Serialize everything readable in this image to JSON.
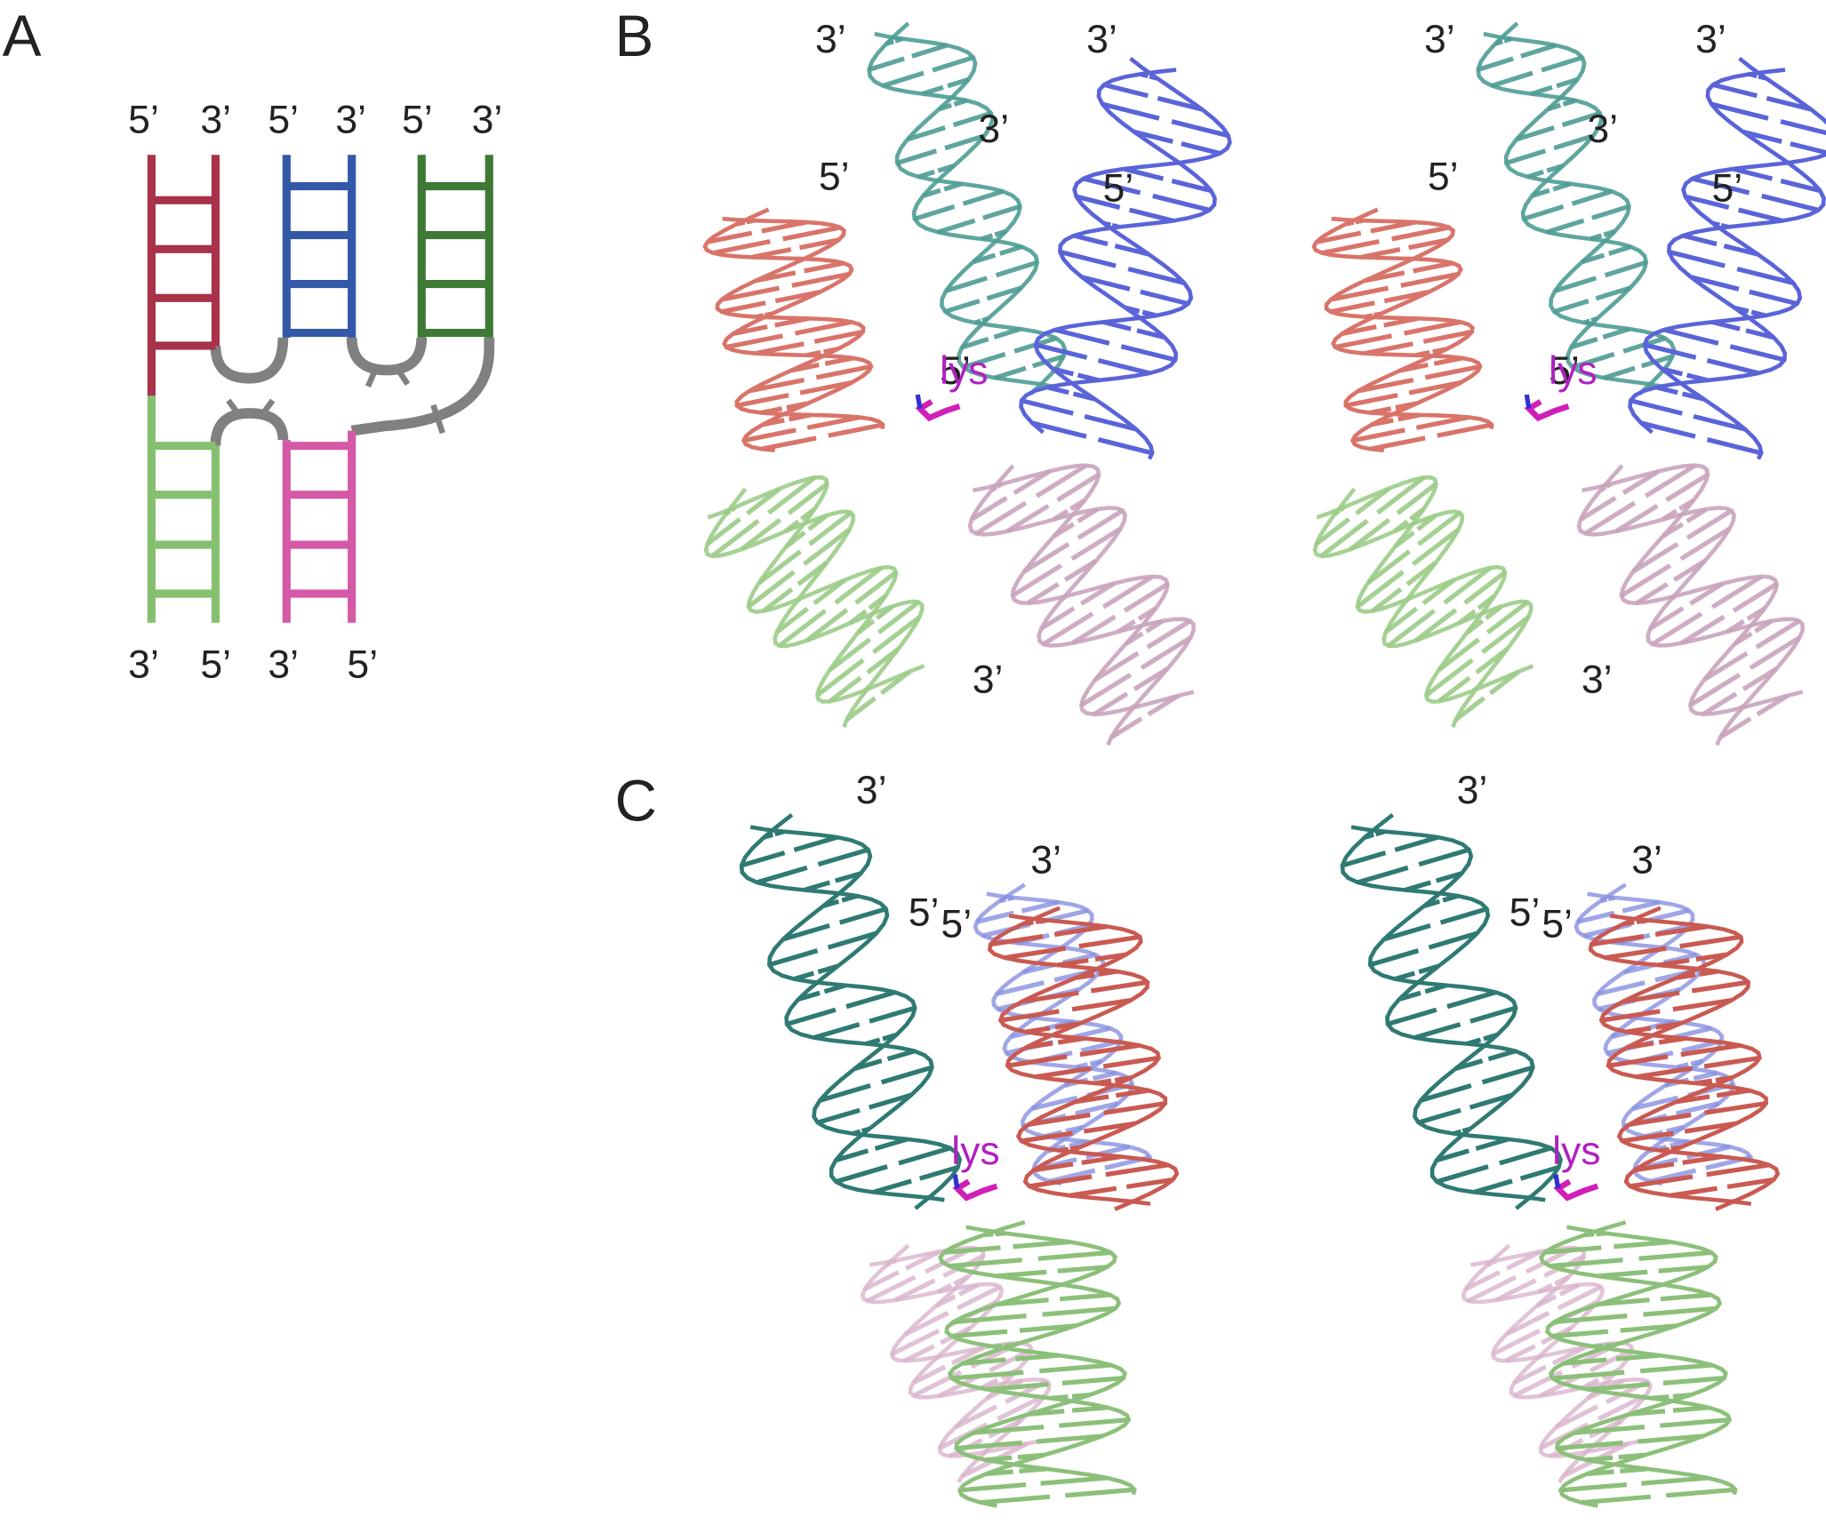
{
  "panel_a": {
    "label": "A",
    "top_ends": [
      "5’",
      "3’",
      "5’",
      "3’",
      "5’",
      "3’"
    ],
    "bottom_ends": [
      "3’",
      "5’",
      "3’",
      "5’"
    ]
  },
  "panel_b": {
    "label": "B",
    "views": [
      {
        "end_labels": [
          "3’",
          "3’",
          "3’",
          "5’",
          "5’",
          "5’",
          "3’"
        ],
        "ligand": "lys"
      },
      {
        "end_labels": [
          "3’",
          "3’",
          "3’",
          "5’",
          "5’",
          "5’",
          "3’"
        ],
        "ligand": "lys"
      }
    ]
  },
  "panel_c": {
    "label": "C",
    "views": [
      {
        "end_labels": [
          "3’",
          "3’",
          "5’",
          "5’"
        ],
        "ligand": "lys"
      },
      {
        "end_labels": [
          "3’",
          "3’",
          "5’",
          "5’"
        ],
        "ligand": "lys"
      }
    ]
  }
}
